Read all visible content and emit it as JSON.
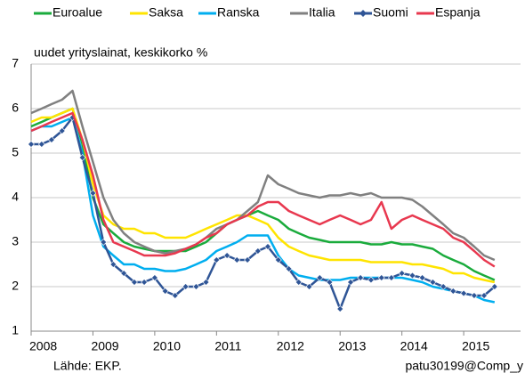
{
  "chart_data": {
    "type": "line",
    "ylabel": "uudet yrityslainat, keskikorko %",
    "source": "Lähde: EKP.",
    "credit": "patu30199@Comp_y",
    "x": [
      2008,
      2008.17,
      2008.33,
      2008.5,
      2008.67,
      2008.83,
      2009,
      2009.17,
      2009.33,
      2009.5,
      2009.67,
      2009.83,
      2010,
      2010.17,
      2010.33,
      2010.5,
      2010.67,
      2010.83,
      2011,
      2011.17,
      2011.33,
      2011.5,
      2011.67,
      2011.83,
      2012,
      2012.17,
      2012.33,
      2012.5,
      2012.67,
      2012.83,
      2013,
      2013.17,
      2013.33,
      2013.5,
      2013.67,
      2013.83,
      2014,
      2014.17,
      2014.33,
      2014.5,
      2014.67,
      2014.83,
      2015,
      2015.17,
      2015.33,
      2015.5
    ],
    "series": [
      {
        "name": "Euroalue",
        "color": "#1aab3c",
        "values": [
          5.6,
          5.7,
          5.8,
          5.9,
          6.0,
          5.2,
          4.0,
          3.4,
          3.2,
          3.0,
          2.9,
          2.85,
          2.8,
          2.8,
          2.8,
          2.8,
          2.9,
          3.0,
          3.2,
          3.4,
          3.5,
          3.6,
          3.7,
          3.6,
          3.5,
          3.3,
          3.2,
          3.1,
          3.05,
          3.0,
          3.0,
          3.0,
          3.0,
          2.95,
          2.95,
          3.0,
          2.95,
          2.95,
          2.9,
          2.85,
          2.7,
          2.6,
          2.5,
          2.35,
          2.25,
          2.15
        ]
      },
      {
        "name": "Saksa",
        "color": "#ffe400",
        "values": [
          5.7,
          5.8,
          5.8,
          5.9,
          6.0,
          5.3,
          4.3,
          3.6,
          3.4,
          3.3,
          3.3,
          3.2,
          3.2,
          3.1,
          3.1,
          3.1,
          3.2,
          3.3,
          3.4,
          3.5,
          3.6,
          3.6,
          3.5,
          3.4,
          3.1,
          2.9,
          2.8,
          2.7,
          2.65,
          2.6,
          2.6,
          2.6,
          2.6,
          2.55,
          2.55,
          2.55,
          2.55,
          2.5,
          2.5,
          2.45,
          2.4,
          2.3,
          2.3,
          2.2,
          2.15,
          2.1
        ]
      },
      {
        "name": "Ranska",
        "color": "#00aeef",
        "values": [
          5.5,
          5.6,
          5.6,
          5.7,
          5.8,
          5.0,
          3.6,
          2.9,
          2.7,
          2.5,
          2.5,
          2.4,
          2.4,
          2.35,
          2.35,
          2.4,
          2.5,
          2.6,
          2.8,
          2.9,
          3.0,
          3.15,
          3.15,
          3.15,
          2.7,
          2.4,
          2.25,
          2.2,
          2.15,
          2.15,
          2.15,
          2.2,
          2.2,
          2.2,
          2.2,
          2.2,
          2.2,
          2.15,
          2.1,
          2.0,
          1.95,
          1.9,
          1.85,
          1.8,
          1.7,
          1.65
        ]
      },
      {
        "name": "Italia",
        "color": "#808080",
        "values": [
          5.9,
          6.0,
          6.1,
          6.2,
          6.4,
          5.6,
          4.8,
          4.0,
          3.5,
          3.2,
          3.0,
          2.9,
          2.8,
          2.75,
          2.8,
          2.85,
          2.95,
          3.1,
          3.3,
          3.4,
          3.5,
          3.7,
          3.9,
          4.5,
          4.3,
          4.2,
          4.1,
          4.05,
          4.0,
          4.05,
          4.05,
          4.1,
          4.05,
          4.1,
          4.0,
          4.0,
          4.0,
          3.95,
          3.8,
          3.6,
          3.4,
          3.2,
          3.1,
          2.9,
          2.7,
          2.6
        ]
      },
      {
        "name": "Suomi",
        "color": "#2f5596",
        "marker": "diamond",
        "values": [
          5.2,
          5.2,
          5.3,
          5.5,
          5.8,
          4.9,
          4.1,
          3.0,
          2.5,
          2.3,
          2.1,
          2.1,
          2.2,
          1.9,
          1.8,
          2.0,
          2.0,
          2.1,
          2.6,
          2.7,
          2.6,
          2.6,
          2.8,
          2.9,
          2.6,
          2.4,
          2.1,
          2.0,
          2.2,
          2.1,
          1.5,
          2.1,
          2.2,
          2.15,
          2.2,
          2.2,
          2.3,
          2.25,
          2.2,
          2.1,
          2.0,
          1.9,
          1.85,
          1.8,
          1.8,
          2.0
        ]
      },
      {
        "name": "Espanja",
        "color": "#e8384f",
        "values": [
          5.5,
          5.6,
          5.7,
          5.8,
          5.9,
          5.3,
          4.5,
          3.5,
          3.0,
          2.9,
          2.8,
          2.7,
          2.7,
          2.7,
          2.75,
          2.85,
          2.95,
          3.1,
          3.2,
          3.4,
          3.5,
          3.6,
          3.8,
          3.9,
          3.9,
          3.7,
          3.6,
          3.5,
          3.4,
          3.5,
          3.6,
          3.5,
          3.4,
          3.5,
          3.9,
          3.3,
          3.5,
          3.6,
          3.5,
          3.4,
          3.3,
          3.1,
          3.0,
          2.8,
          2.6,
          2.45
        ]
      }
    ],
    "xlim": [
      2008,
      2015.92
    ],
    "xticks": [
      2008,
      2009,
      2010,
      2011,
      2012,
      2013,
      2014,
      2015
    ],
    "ylim": [
      1,
      7
    ],
    "yticks": [
      1,
      2,
      3,
      4,
      5,
      6,
      7
    ],
    "grid": true,
    "legend": "top"
  }
}
